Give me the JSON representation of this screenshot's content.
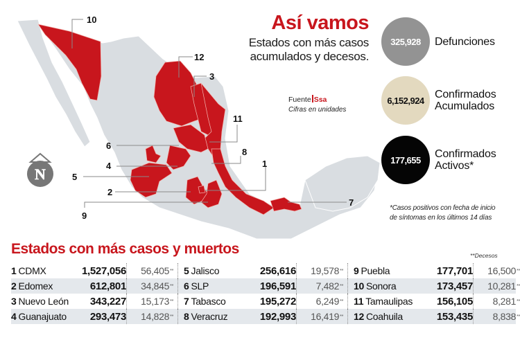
{
  "header": {
    "title": "Así vamos",
    "subtitle_line1": "Estados con más casos",
    "subtitle_line2": "acumulados y decesos."
  },
  "source": {
    "label": "Fuente",
    "name": "Ssa",
    "note": "Cifras en unidades"
  },
  "stats": [
    {
      "value": "325,928",
      "label_line1": "Defunciones",
      "label_line2": "",
      "circle_color": "#939393",
      "text_color": "#ffffff"
    },
    {
      "value": "6,152,924",
      "label_line1": "Confirmados",
      "label_line2": "Acumulados",
      "circle_color": "#e3d9bf",
      "text_color": "#111111"
    },
    {
      "value": "177,655",
      "label_line1": "Confirmados",
      "label_line2": "Activos*",
      "circle_color": "#050505",
      "text_color": "#ffffff"
    }
  ],
  "footnote": {
    "line1": "*Casos positivos con fecha de inicio",
    "line2": "de síntomas en los últimos 14 días"
  },
  "map": {
    "compass_label": "N",
    "highlight_color": "#c8161d",
    "base_color": "#d9dde1",
    "callouts": [
      "10",
      "12",
      "3",
      "11",
      "6",
      "8",
      "4",
      "1",
      "5",
      "2",
      "7",
      "9"
    ]
  },
  "table": {
    "title": "Estados con más casos y muertos",
    "deceased_note": "**Decesos",
    "rows": [
      [
        {
          "rank": "1",
          "state": "CDMX",
          "cases": "1,527,056",
          "deaths": "56,405"
        },
        {
          "rank": "5",
          "state": "Jalisco",
          "cases": "256,616",
          "deaths": "19,578"
        },
        {
          "rank": "9",
          "state": "Puebla",
          "cases": "177,701",
          "deaths": "16,500"
        }
      ],
      [
        {
          "rank": "2",
          "state": "Edomex",
          "cases": "612,801",
          "deaths": "34,845"
        },
        {
          "rank": "6",
          "state": "SLP",
          "cases": "196,591",
          "deaths": "7,482"
        },
        {
          "rank": "10",
          "state": "Sonora",
          "cases": "173,457",
          "deaths": "10,281"
        }
      ],
      [
        {
          "rank": "3",
          "state": "Nuevo León",
          "cases": "343,227",
          "deaths": "15,173"
        },
        {
          "rank": "7",
          "state": "Tabasco",
          "cases": "195,272",
          "deaths": "6,249"
        },
        {
          "rank": "11",
          "state": "Tamaulipas",
          "cases": "156,105",
          "deaths": "8,281"
        }
      ],
      [
        {
          "rank": "4",
          "state": "Guanajuato",
          "cases": "293,473",
          "deaths": "14,828"
        },
        {
          "rank": "8",
          "state": "Veracruz",
          "cases": "192,993",
          "deaths": "16,419"
        },
        {
          "rank": "12",
          "state": "Coahuila",
          "cases": "153,435",
          "deaths": "8,838"
        }
      ]
    ],
    "deaths_marker": "**"
  }
}
